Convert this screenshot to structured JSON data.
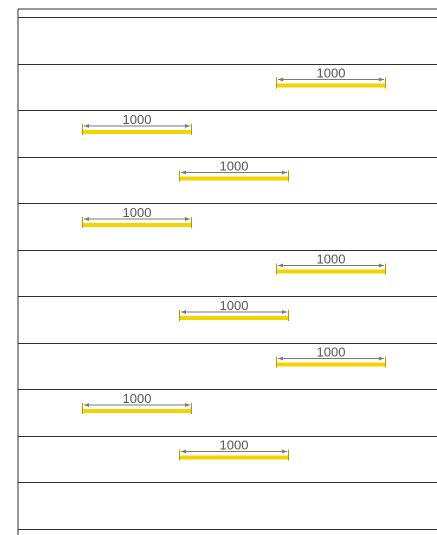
{
  "colors": {
    "lane_line": "#2f2f2f",
    "bar": "#f2d400",
    "bar_edge": "#b89a00",
    "dimension_line": "#7a7a7a",
    "label_text": "#555555",
    "background": "#ffffff"
  },
  "label_unit": "1000",
  "bars": [
    {
      "lane": 1,
      "slot": 2,
      "label": "1000"
    },
    {
      "lane": 2,
      "slot": 0,
      "label": "1000"
    },
    {
      "lane": 3,
      "slot": 1,
      "label": "1000"
    },
    {
      "lane": 4,
      "slot": 0,
      "label": "1000"
    },
    {
      "lane": 5,
      "slot": 2,
      "label": "1000"
    },
    {
      "lane": 6,
      "slot": 1,
      "label": "1000"
    },
    {
      "lane": 7,
      "slot": 2,
      "label": "1000"
    },
    {
      "lane": 8,
      "slot": 0,
      "label": "1000"
    },
    {
      "lane": 9,
      "slot": 1,
      "label": "1000"
    }
  ]
}
